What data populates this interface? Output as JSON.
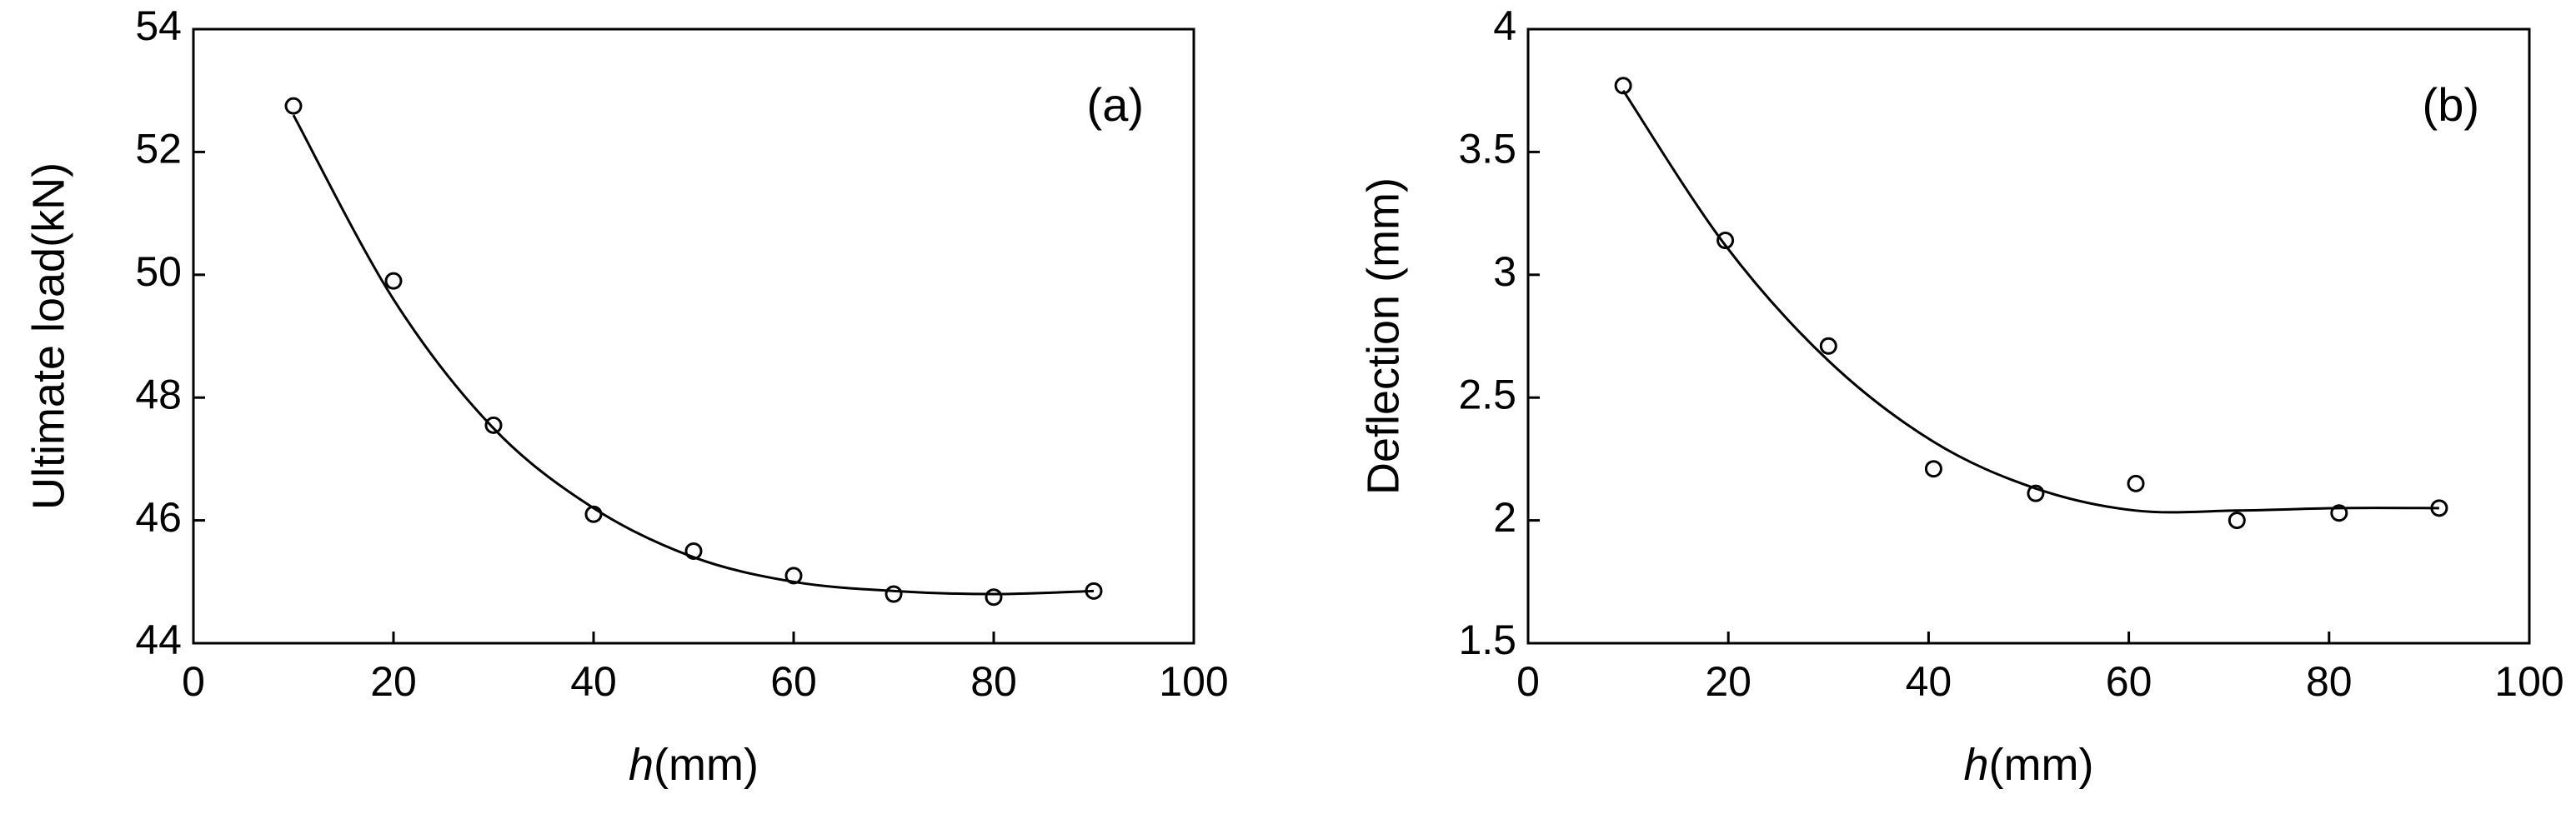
{
  "chart_data": [
    {
      "type": "scatter",
      "annotation": "(a)",
      "ylabel": "Ultimate load(kN)",
      "xlabel_var": "h",
      "xlabel_unit": "(mm)",
      "x": [
        10,
        20,
        30,
        40,
        50,
        60,
        70,
        80,
        90
      ],
      "series": [
        {
          "values": [
            52.75,
            49.9,
            47.55,
            46.1,
            45.5,
            45.1,
            44.8,
            44.75,
            44.85
          ],
          "color": "#000000"
        },
        {
          "values": [
            52.6,
            49.6,
            47.5,
            46.2,
            45.4,
            45.0,
            44.85,
            44.8,
            44.85
          ],
          "color": "#000000",
          "style": "fit"
        }
      ],
      "xlim": [
        0,
        100
      ],
      "xticks": [
        0,
        20,
        40,
        60,
        80,
        100
      ],
      "ylim": [
        44,
        54
      ],
      "yticks": [
        44,
        46,
        48,
        50,
        52,
        54
      ]
    },
    {
      "type": "scatter",
      "annotation": "(b)",
      "ylabel": "Deflection (mm)",
      "xlabel_var": "h",
      "xlabel_unit": "(mm)",
      "x": [
        9.5,
        19.7,
        30,
        40.5,
        50.7,
        60.7,
        70.8,
        81,
        91
      ],
      "series": [
        {
          "values": [
            3.77,
            3.14,
            2.71,
            2.21,
            2.11,
            2.15,
            2.0,
            2.03,
            2.05
          ],
          "color": "#000000"
        },
        {
          "values": [
            3.75,
            3.12,
            2.65,
            2.32,
            2.13,
            2.04,
            2.04,
            2.05,
            2.05
          ],
          "color": "#000000",
          "style": "fit"
        }
      ],
      "xlim": [
        0,
        100
      ],
      "xticks": [
        0,
        20,
        40,
        60,
        80,
        100
      ],
      "ylim": [
        1.5,
        4
      ],
      "yticks": [
        1.5,
        2,
        2.5,
        3,
        3.5,
        4
      ]
    }
  ]
}
